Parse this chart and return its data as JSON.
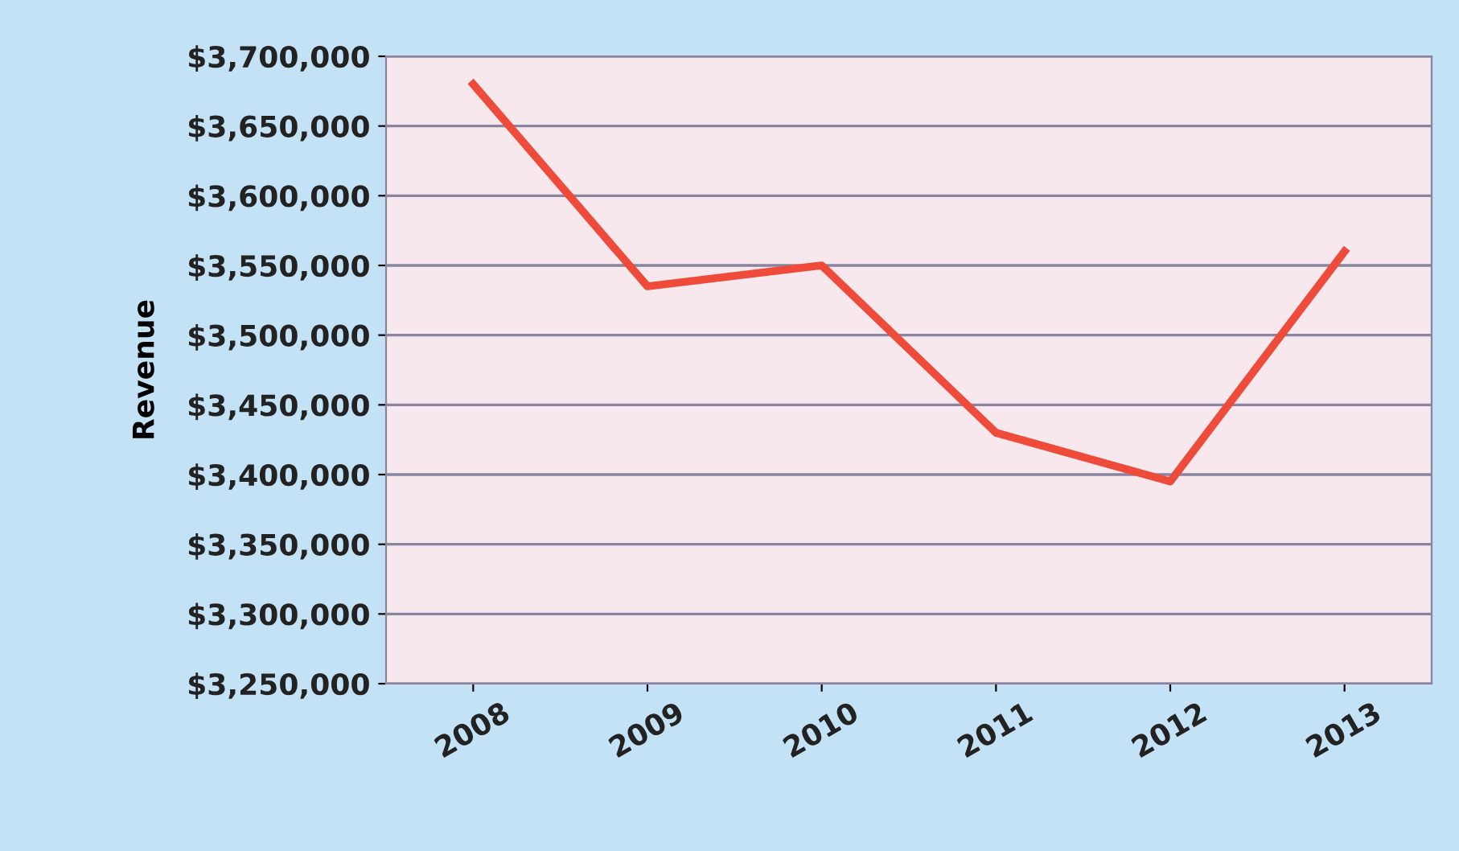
{
  "chart_data": {
    "type": "line",
    "ylabel": "Revenue",
    "categories": [
      "2008",
      "2009",
      "2010",
      "2011",
      "2012",
      "2013"
    ],
    "series": [
      {
        "color": "#ee4b3b",
        "values": [
          3680000,
          3535000,
          3550000,
          3430000,
          3395000,
          3560000
        ]
      }
    ],
    "ylim": [
      3250000,
      3700000
    ],
    "yticks": [
      {
        "value": 3250000,
        "label": "$3,250,000"
      },
      {
        "value": 3300000,
        "label": "$3,300,000"
      },
      {
        "value": 3350000,
        "label": "$3,350,000"
      },
      {
        "value": 3400000,
        "label": "$3,400,000"
      },
      {
        "value": 3450000,
        "label": "$3,450,000"
      },
      {
        "value": 3500000,
        "label": "$3,500,000"
      },
      {
        "value": 3550000,
        "label": "$3,550,000"
      },
      {
        "value": 3600000,
        "label": "$3,600,000"
      },
      {
        "value": 3650000,
        "label": "$3,650,000"
      },
      {
        "value": 3700000,
        "label": "$3,700,000"
      }
    ],
    "grid": "y",
    "marker": "none",
    "line_style": "solid",
    "legend": false
  }
}
